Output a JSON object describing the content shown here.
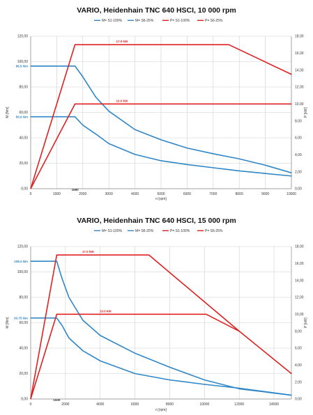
{
  "colors": {
    "torque": "#2e86c8",
    "power": "#e02020",
    "text": "#333333",
    "grid": "#cfcfcf"
  },
  "chart_data": [
    {
      "type": "line",
      "title": "VARIO, Heidenhain TNC 640  HSCI, 10 000 rpm",
      "xlabel": "n [rpm]",
      "ylabel": "M [Nm]",
      "y2label": "P [kW]",
      "xlim": [
        0,
        10000
      ],
      "ylim": [
        0,
        120
      ],
      "y2lim": [
        0,
        18
      ],
      "xticks": [
        0,
        1000,
        2000,
        3000,
        4000,
        5000,
        6000,
        7000,
        8000,
        9000,
        10000
      ],
      "xtick_labels": [
        "0",
        "1000",
        "2000",
        "3000",
        "4000",
        "5000",
        "6000",
        "7000",
        "8000",
        "9000",
        "10000"
      ],
      "yticks": [
        0,
        20,
        40,
        60,
        80,
        100,
        120
      ],
      "ytick_labels": [
        "0,00",
        "20,00",
        "40,00",
        "60,00",
        "80,00",
        "100,00",
        "120,00"
      ],
      "y2ticks": [
        0,
        2,
        4,
        6,
        8,
        10,
        12,
        14,
        16,
        18
      ],
      "y2tick_labels": [
        "0,00",
        "2,00",
        "4,00",
        "6,00",
        "8,00",
        "10,00",
        "12,00",
        "14,00",
        "16,00",
        "18,00"
      ],
      "grid": true,
      "legend_position": "top-center",
      "series": [
        {
          "name": "M= S1-100%",
          "axis": "left",
          "color": "#2e86c8",
          "x": [
            0,
            1700,
            2000,
            2500,
            3000,
            4000,
            5000,
            6000,
            7000,
            8000,
            9000,
            10000
          ],
          "y": [
            96.5,
            96.5,
            88,
            72,
            61,
            46.5,
            38.5,
            32,
            27.5,
            23.5,
            18.5,
            12.5
          ]
        },
        {
          "name": "M= S6-25%",
          "axis": "left",
          "color": "#2e86c8",
          "x": [
            0,
            1700,
            2000,
            2500,
            3000,
            4000,
            5000,
            6000,
            7000,
            8000,
            9000,
            10000
          ],
          "y": [
            56.6,
            56.6,
            50,
            43,
            35.5,
            27,
            22,
            19,
            16.5,
            14,
            12,
            10
          ]
        },
        {
          "name": "P= S1-100%",
          "axis": "right",
          "color": "#e02020",
          "x": [
            0,
            1700,
            7600,
            10000
          ],
          "y": [
            0,
            17,
            17,
            13.5
          ]
        },
        {
          "name": "P= S6-25%",
          "axis": "right",
          "color": "#e02020",
          "x": [
            0,
            1700,
            10000
          ],
          "y": [
            0,
            10,
            10
          ]
        }
      ],
      "annotations": [
        {
          "text": "17.0 kW",
          "axis": "right",
          "x": 3500,
          "y": 17,
          "color": "#e02020"
        },
        {
          "text": "10.0 kW",
          "axis": "right",
          "x": 3500,
          "y": 10,
          "color": "#e02020"
        },
        {
          "text": "96.5 Nm",
          "axis": "left",
          "x": 0,
          "y": 96.5,
          "color": "#2e86c8"
        },
        {
          "text": "56.6 Nm",
          "axis": "left",
          "x": 0,
          "y": 56.6,
          "color": "#2e86c8"
        },
        {
          "text": "1690",
          "axis": "left",
          "x": 1700,
          "y": 0,
          "color": "#333333"
        }
      ]
    },
    {
      "type": "line",
      "title": "VARIO, Heidenhain TNC 640  HSCI, 15 000 rpm",
      "xlabel": "n [rpm]",
      "ylabel": "M [Nm]",
      "y2label": "P [kW]",
      "xlim": [
        0,
        15000
      ],
      "ylim": [
        0,
        120
      ],
      "y2lim": [
        0,
        18
      ],
      "xticks": [
        0,
        2000,
        4000,
        6000,
        8000,
        10000,
        12000,
        14000
      ],
      "xtick_labels": [
        "0",
        "2000",
        "4000",
        "6000",
        "8000",
        "10000",
        "12000",
        "14000"
      ],
      "yticks": [
        0,
        20,
        40,
        60,
        80,
        100,
        120
      ],
      "ytick_labels": [
        "0,00",
        "20,00",
        "40,00",
        "60,00",
        "80,00",
        "100,00",
        "120,00"
      ],
      "y2ticks": [
        0,
        2,
        4,
        6,
        8,
        10,
        12,
        14,
        16,
        18
      ],
      "y2tick_labels": [
        "0,00",
        "2,00",
        "4,00",
        "6,00",
        "8,00",
        "10,00",
        "12,00",
        "14,00",
        "16,00",
        "18,00"
      ],
      "grid": true,
      "legend_position": "top-center",
      "series": [
        {
          "name": "M= S1-100%",
          "axis": "left",
          "color": "#2e86c8",
          "x": [
            0,
            1500,
            1800,
            2200,
            3000,
            4000,
            6000,
            8000,
            10000,
            12000,
            15000
          ],
          "y": [
            108.4,
            108.4,
            95,
            80,
            62,
            50,
            36,
            25,
            15,
            8,
            3
          ]
        },
        {
          "name": "M= S6-25%",
          "axis": "left",
          "color": "#2e86c8",
          "x": [
            0,
            1500,
            1800,
            2200,
            3000,
            4000,
            6000,
            8000,
            10000,
            12000,
            15000
          ],
          "y": [
            63.75,
            63.75,
            58,
            48,
            38,
            30,
            20,
            15,
            11.5,
            8.5,
            3
          ]
        },
        {
          "name": "P= S1-100%",
          "axis": "right",
          "color": "#e02020",
          "x": [
            0,
            1500,
            6800,
            12000,
            15000
          ],
          "y": [
            0,
            17,
            17,
            8,
            3
          ]
        },
        {
          "name": "P= S6-25%",
          "axis": "right",
          "color": "#e02020",
          "x": [
            0,
            1500,
            10100,
            12000
          ],
          "y": [
            0,
            10,
            10,
            8
          ]
        }
      ],
      "annotations": [
        {
          "text": "17.0 kW",
          "axis": "right",
          "x": 3300,
          "y": 17,
          "color": "#e02020"
        },
        {
          "text": "10.0 kW",
          "axis": "right",
          "x": 4300,
          "y": 10,
          "color": "#e02020"
        },
        {
          "text": "108.4 Nm",
          "axis": "left",
          "x": 0,
          "y": 108.4,
          "color": "#2e86c8"
        },
        {
          "text": "63.75 Nm",
          "axis": "left",
          "x": 0,
          "y": 63.75,
          "color": "#2e86c8"
        },
        {
          "text": "1500",
          "axis": "left",
          "x": 1500,
          "y": 0,
          "color": "#333333"
        }
      ]
    }
  ]
}
